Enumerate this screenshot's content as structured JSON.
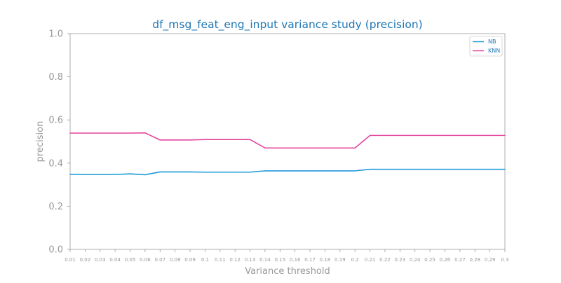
{
  "chart_data": {
    "type": "line",
    "title": "df_msg_feat_eng_input variance study (precision)",
    "xlabel": "Variance threshold",
    "ylabel": "precision",
    "ylim": [
      0.0,
      1.0
    ],
    "yticks": [
      "0.0",
      "0.2",
      "0.4",
      "0.6",
      "0.8",
      "1.0"
    ],
    "x": [
      0.01,
      0.02,
      0.03,
      0.04,
      0.05,
      0.06,
      0.07,
      0.08,
      0.09,
      0.1,
      0.11,
      0.12,
      0.13,
      0.14,
      0.15,
      0.16,
      0.17,
      0.18,
      0.19,
      0.2,
      0.21,
      0.22,
      0.23,
      0.24,
      0.25,
      0.26,
      0.27,
      0.28,
      0.29,
      0.3
    ],
    "xticks": [
      "0.01",
      "0.02",
      "0.03",
      "0.04",
      "0.05",
      "0.06",
      "0.07",
      "0.08",
      "0.09",
      "0.1",
      "0.11",
      "0.12",
      "0.13",
      "0.14",
      "0.15",
      "0.16",
      "0.17",
      "0.18",
      "0.19",
      "0.2",
      "0.21",
      "0.22",
      "0.23",
      "0.24",
      "0.25",
      "0.26",
      "0.27",
      "0.28",
      "0.29",
      "0.3"
    ],
    "series": [
      {
        "name": "NB",
        "color": "#1f9bd7",
        "values": [
          0.348,
          0.347,
          0.347,
          0.347,
          0.35,
          0.346,
          0.359,
          0.359,
          0.359,
          0.358,
          0.358,
          0.358,
          0.358,
          0.364,
          0.364,
          0.364,
          0.364,
          0.364,
          0.364,
          0.364,
          0.371,
          0.371,
          0.371,
          0.371,
          0.371,
          0.371,
          0.371,
          0.371,
          0.371,
          0.371
        ]
      },
      {
        "name": "KNN",
        "color": "#e2449d",
        "values": [
          0.539,
          0.539,
          0.539,
          0.539,
          0.539,
          0.54,
          0.507,
          0.507,
          0.507,
          0.509,
          0.509,
          0.509,
          0.509,
          0.47,
          0.47,
          0.47,
          0.47,
          0.47,
          0.47,
          0.47,
          0.528,
          0.528,
          0.528,
          0.528,
          0.528,
          0.528,
          0.528,
          0.528,
          0.528,
          0.528
        ]
      }
    ],
    "legend": "top-right",
    "grid": false,
    "colors": {
      "title": "#1f77b4",
      "axis": "#999999",
      "tick_label": "#999999"
    }
  }
}
